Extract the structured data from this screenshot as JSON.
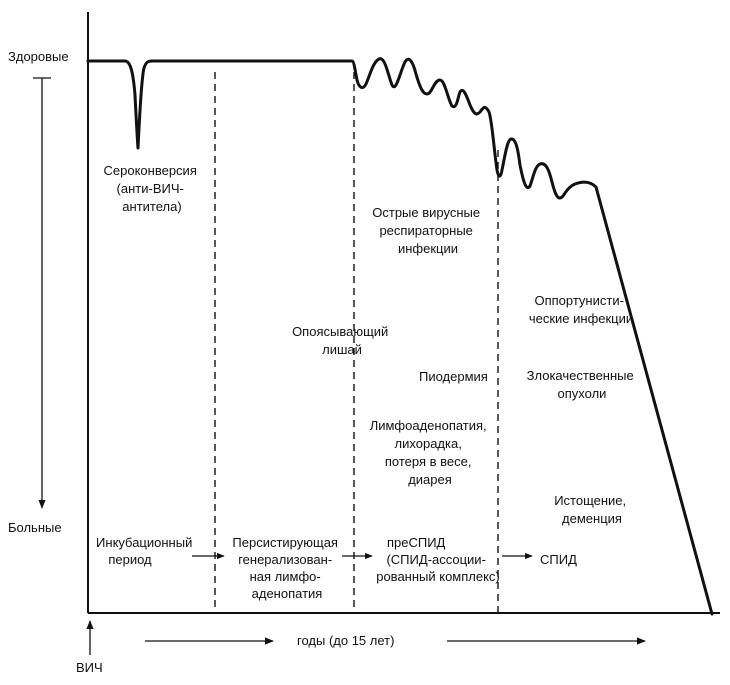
{
  "axis": {
    "top_label": "Здоровые",
    "bottom_label": "Больные",
    "origin_label": "ВИЧ",
    "x_label": "годы (до 15 лет)"
  },
  "events": {
    "seroconversion": [
      "Сероконверсия",
      "(анти-ВИЧ-",
      "антитела)"
    ],
    "ari": [
      "Острые вирусные",
      "респираторные",
      "инфекции"
    ],
    "zoster": [
      "Опоясывающий",
      "лишай"
    ],
    "pyoderma": "Пиодермия",
    "lymphadenopathy": [
      "Лимфоаденопатия,",
      "лихорадка,",
      "потеря в весе,",
      "диарея"
    ],
    "opportunistic": [
      "Оппортунисти-",
      "ческие инфекции"
    ],
    "tumors": [
      "Злокачественные",
      "опухоли"
    ],
    "exhaustion": [
      "Истощение,",
      "деменция"
    ]
  },
  "stages": {
    "incubation": [
      "Инкубационный",
      "период"
    ],
    "persistent": [
      "Персистирующая",
      "генерализован-",
      "ная лимфо-",
      "аденопатия"
    ],
    "presaids": [
      "преСПИД",
      "(СПИД-ассоции-",
      "рованный комплекс)"
    ],
    "aids": "СПИД"
  }
}
